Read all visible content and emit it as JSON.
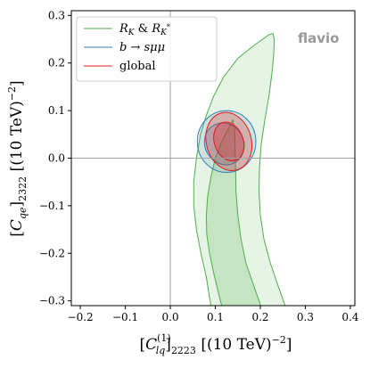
{
  "chart_data": {
    "type": "contour",
    "watermark": "flavio",
    "xlabel": "[C_lq^(1)]_2223 [(10 TeV)^-2]",
    "ylabel": "[C_qe]_2322 [(10 TeV)^-2]",
    "xlim": [
      -0.22,
      0.41
    ],
    "ylim": [
      -0.31,
      0.31
    ],
    "xticks": [
      "−0.2",
      "−0.1",
      "0.0",
      "0.1",
      "0.2",
      "0.3",
      "0.4"
    ],
    "yticks": [
      "−0.3",
      "−0.2",
      "−0.1",
      "0.0",
      "0.1",
      "0.2",
      "0.3"
    ],
    "xtick_values": [
      -0.2,
      -0.1,
      0.0,
      0.1,
      0.2,
      0.3,
      0.4
    ],
    "ytick_values": [
      -0.3,
      -0.2,
      -0.1,
      0.0,
      0.1,
      0.2,
      0.3
    ],
    "reference_lines": {
      "x": 0.0,
      "y": 0.0
    },
    "legend_position": "top-left",
    "series": [
      {
        "name": "R_K & R_K*",
        "legend_label": "R_K & R_K*",
        "color": "#4daf4a",
        "fill": "#4daf4a",
        "contours": [
          {
            "level": "2σ",
            "fill_opacity": 0.14,
            "points": [
              [
                0.228,
                0.262
              ],
              [
                0.22,
                0.26
              ],
              [
                0.19,
                0.24
              ],
              [
                0.15,
                0.21
              ],
              [
                0.118,
                0.17
              ],
              [
                0.096,
                0.13
              ],
              [
                0.08,
                0.09
              ],
              [
                0.067,
                0.05
              ],
              [
                0.058,
                0.0
              ],
              [
                0.052,
                -0.05
              ],
              [
                0.052,
                -0.1
              ],
              [
                0.058,
                -0.15
              ],
              [
                0.068,
                -0.2
              ],
              [
                0.08,
                -0.25
              ],
              [
                0.09,
                -0.31
              ],
              [
                0.255,
                -0.31
              ],
              [
                0.24,
                -0.27
              ],
              [
                0.222,
                -0.22
              ],
              [
                0.208,
                -0.17
              ],
              [
                0.2,
                -0.12
              ],
              [
                0.197,
                -0.07
              ],
              [
                0.198,
                -0.02
              ],
              [
                0.202,
                0.03
              ],
              [
                0.21,
                0.08
              ],
              [
                0.219,
                0.13
              ],
              [
                0.226,
                0.18
              ],
              [
                0.23,
                0.22
              ],
              [
                0.231,
                0.25
              ]
            ]
          },
          {
            "level": "1σ",
            "fill_opacity": 0.22,
            "points": [
              [
                0.139,
                0.08
              ],
              [
                0.125,
                0.055
              ],
              [
                0.112,
                0.03
              ],
              [
                0.1,
                0.0
              ],
              [
                0.09,
                -0.04
              ],
              [
                0.083,
                -0.08
              ],
              [
                0.08,
                -0.12
              ],
              [
                0.081,
                -0.16
              ],
              [
                0.087,
                -0.2
              ],
              [
                0.096,
                -0.24
              ],
              [
                0.106,
                -0.28
              ],
              [
                0.114,
                -0.31
              ],
              [
                0.201,
                -0.31
              ],
              [
                0.186,
                -0.27
              ],
              [
                0.168,
                -0.22
              ],
              [
                0.157,
                -0.17
              ],
              [
                0.15,
                -0.12
              ],
              [
                0.146,
                -0.07
              ],
              [
                0.145,
                -0.02
              ],
              [
                0.144,
                0.03
              ],
              [
                0.143,
                0.06
              ]
            ]
          }
        ]
      },
      {
        "name": "b → sμμ",
        "legend_label": "b → sμμ",
        "color": "#377eb8",
        "fill": "#377eb8",
        "contours": [
          {
            "level": "2σ",
            "fill_opacity": 0.14,
            "ellipse": {
              "cx": 0.125,
              "cy": 0.035,
              "rx": 0.065,
              "ry": 0.065,
              "rotation_deg": 0
            }
          },
          {
            "level": "1σ",
            "fill_opacity": 0.22,
            "ellipse": {
              "cx": 0.12,
              "cy": 0.03,
              "rx": 0.043,
              "ry": 0.045,
              "rotation_deg": -30
            }
          }
        ]
      },
      {
        "name": "global",
        "legend_label": "global",
        "color": "#e41a1c",
        "fill": "#e41a1c",
        "contours": [
          {
            "level": "2σ",
            "fill_opacity": 0.25,
            "ellipse": {
              "cx": 0.13,
              "cy": 0.035,
              "rx": 0.05,
              "ry": 0.062,
              "rotation_deg": -15
            }
          },
          {
            "level": "1σ",
            "fill_opacity": 0.3,
            "ellipse": {
              "cx": 0.13,
              "cy": 0.035,
              "rx": 0.032,
              "ry": 0.042,
              "rotation_deg": -20
            }
          }
        ]
      }
    ]
  }
}
